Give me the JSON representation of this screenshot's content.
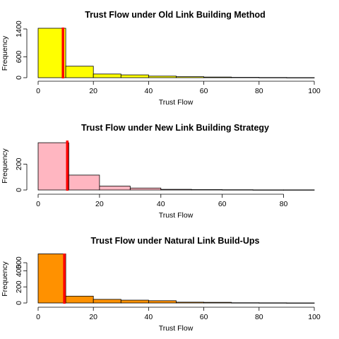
{
  "chart_data": [
    {
      "type": "bar",
      "title": "Trust Flow under Old Link Building Method",
      "xlabel": "Trust Flow",
      "ylabel": "Frequency",
      "bin_width": 10,
      "bins_start": [
        0,
        10,
        20,
        30,
        40,
        50,
        60,
        70,
        80,
        90
      ],
      "values": [
        1420,
        330,
        105,
        80,
        45,
        28,
        18,
        10,
        6,
        3
      ],
      "xlim": [
        0,
        100
      ],
      "ylim": [
        0,
        1400
      ],
      "xticks": [
        "0",
        "20",
        "40",
        "60",
        "80",
        "100"
      ],
      "yticks": [
        "0",
        "600",
        "1400"
      ],
      "mean_line": 9.0,
      "fill_color": "#ffff00",
      "line_color": "#ff0000"
    },
    {
      "type": "bar",
      "title": "Trust Flow under New Link Building Strategy",
      "xlabel": "Trust Flow",
      "ylabel": "Frequency",
      "bin_width": 10,
      "bins_start": [
        0,
        10,
        20,
        30,
        40,
        50,
        60,
        70,
        80
      ],
      "values": [
        365,
        115,
        30,
        15,
        5,
        3,
        2,
        1,
        1
      ],
      "xlim": [
        0,
        90
      ],
      "ylim": [
        0,
        300
      ],
      "xticks": [
        "0",
        "20",
        "40",
        "60",
        "80"
      ],
      "yticks": [
        "0",
        "200"
      ],
      "mean_line": 9.5,
      "fill_color": "#ffb6c1",
      "line_color": "#ff0000"
    },
    {
      "type": "bar",
      "title": "Trust Flow under Natural Link Build-Ups",
      "xlabel": "Trust Flow",
      "ylabel": "Frequency",
      "bin_width": 10,
      "bins_start": [
        0,
        10,
        20,
        30,
        40,
        50,
        60,
        70,
        80,
        90
      ],
      "values": [
        610,
        85,
        45,
        35,
        28,
        10,
        8,
        3,
        2,
        1
      ],
      "xlim": [
        0,
        100
      ],
      "ylim": [
        0,
        500
      ],
      "xticks": [
        "0",
        "20",
        "40",
        "60",
        "80",
        "100"
      ],
      "yticks": [
        "0",
        "200",
        "400",
        "500"
      ],
      "mean_line": 9.5,
      "fill_color": "#ff9100",
      "line_color": "#ff0000"
    }
  ]
}
